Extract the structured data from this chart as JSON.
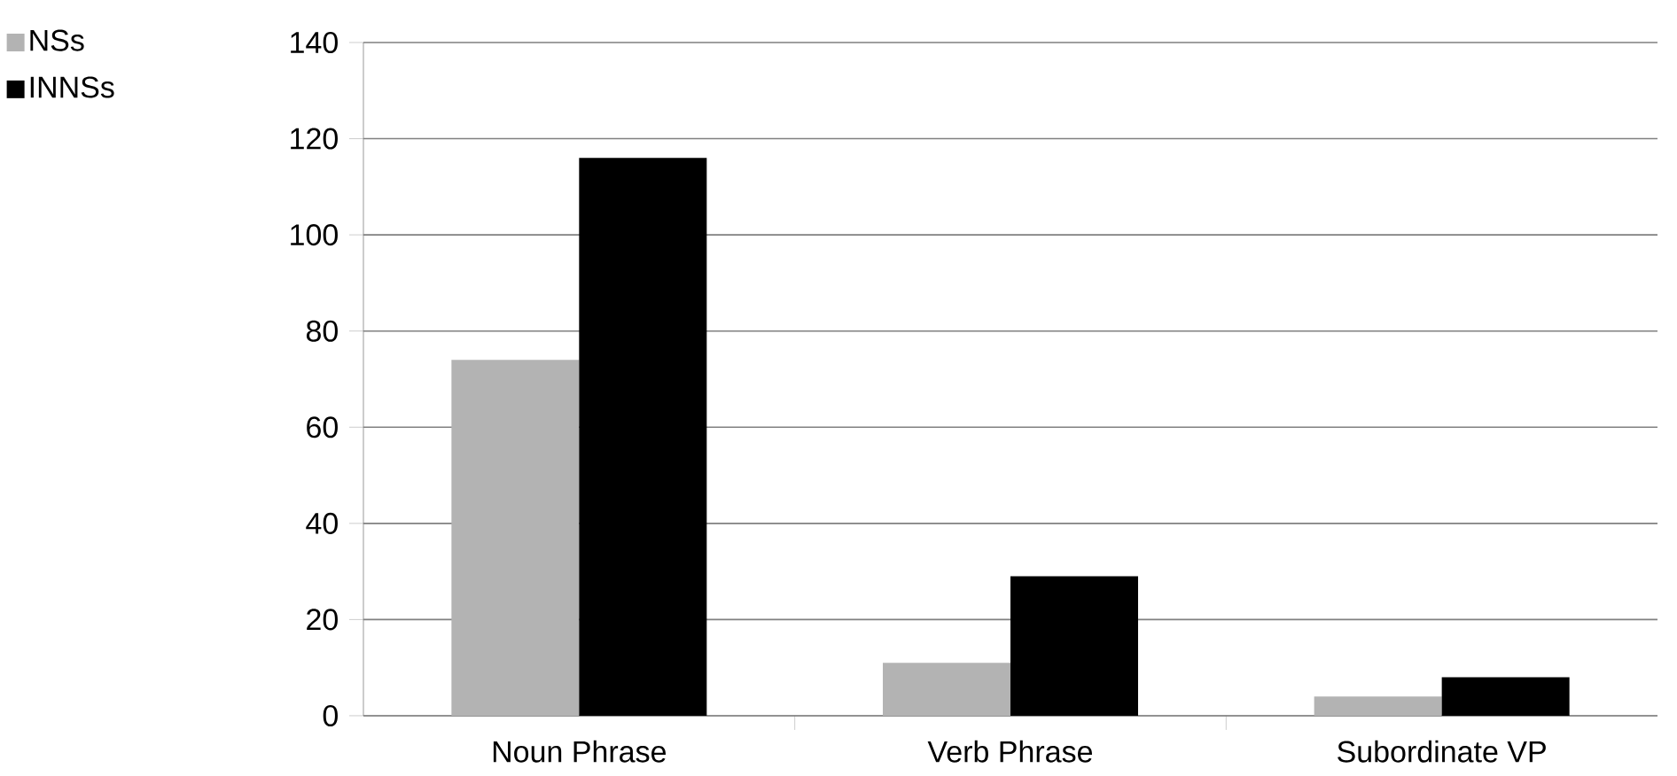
{
  "chart_data": {
    "type": "bar",
    "categories": [
      "Noun Phrase",
      "Verb Phrase",
      "Subordinate VP"
    ],
    "series": [
      {
        "name": "NSs",
        "color": "#b3b3b3",
        "values": [
          74,
          11,
          4
        ]
      },
      {
        "name": "INNSs",
        "color": "#000000",
        "values": [
          116,
          29,
          8
        ]
      }
    ],
    "ylim": [
      0,
      140
    ],
    "yticks": [
      0,
      20,
      40,
      60,
      80,
      100,
      120,
      140
    ],
    "grid": "y",
    "legend": "top left"
  }
}
